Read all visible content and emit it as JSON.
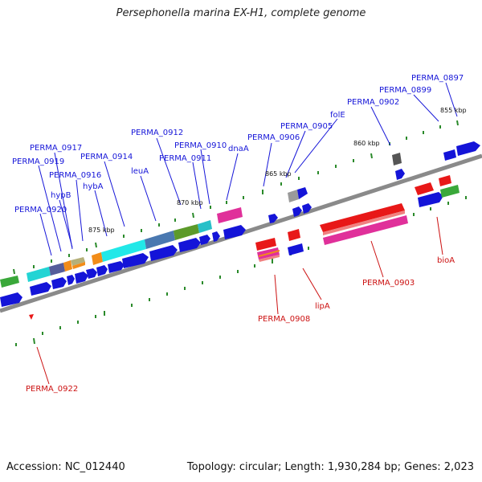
{
  "title": "Persephonella marina EX-H1, complete genome",
  "footer": {
    "accession": "Accession: NC_012440",
    "stats": "Topology: circular; Length: 1,930,284 bp; Genes: 2,023"
  },
  "kbp_labels": [
    "855 kbp",
    "860 kbp",
    "865 kbp",
    "870 kbp",
    "875 kbp"
  ],
  "gene_labels_top": [
    "PERMA_0897",
    "PERMA_0899",
    "PERMA_0902",
    "folE",
    "PERMA_0905",
    "PERMA_0906",
    "dnaA",
    "PERMA_0910",
    "PERMA_0911",
    "PERMA_0912",
    "leuA",
    "PERMA_0914",
    "PERMA_0916",
    "hybA",
    "hypB",
    "PERMA_0917",
    "PERMA_0919",
    "PERMA_0920"
  ],
  "gene_labels_bottom": [
    "PERMA_0903",
    "bioA",
    "lipA",
    "PERMA_0908",
    "PERMA_0922"
  ],
  "colors": {
    "label_forward": "#1616d8",
    "label_reverse": "#cc1111",
    "backbone": "#8a8a8a",
    "tick": "#2a8a2a"
  }
}
